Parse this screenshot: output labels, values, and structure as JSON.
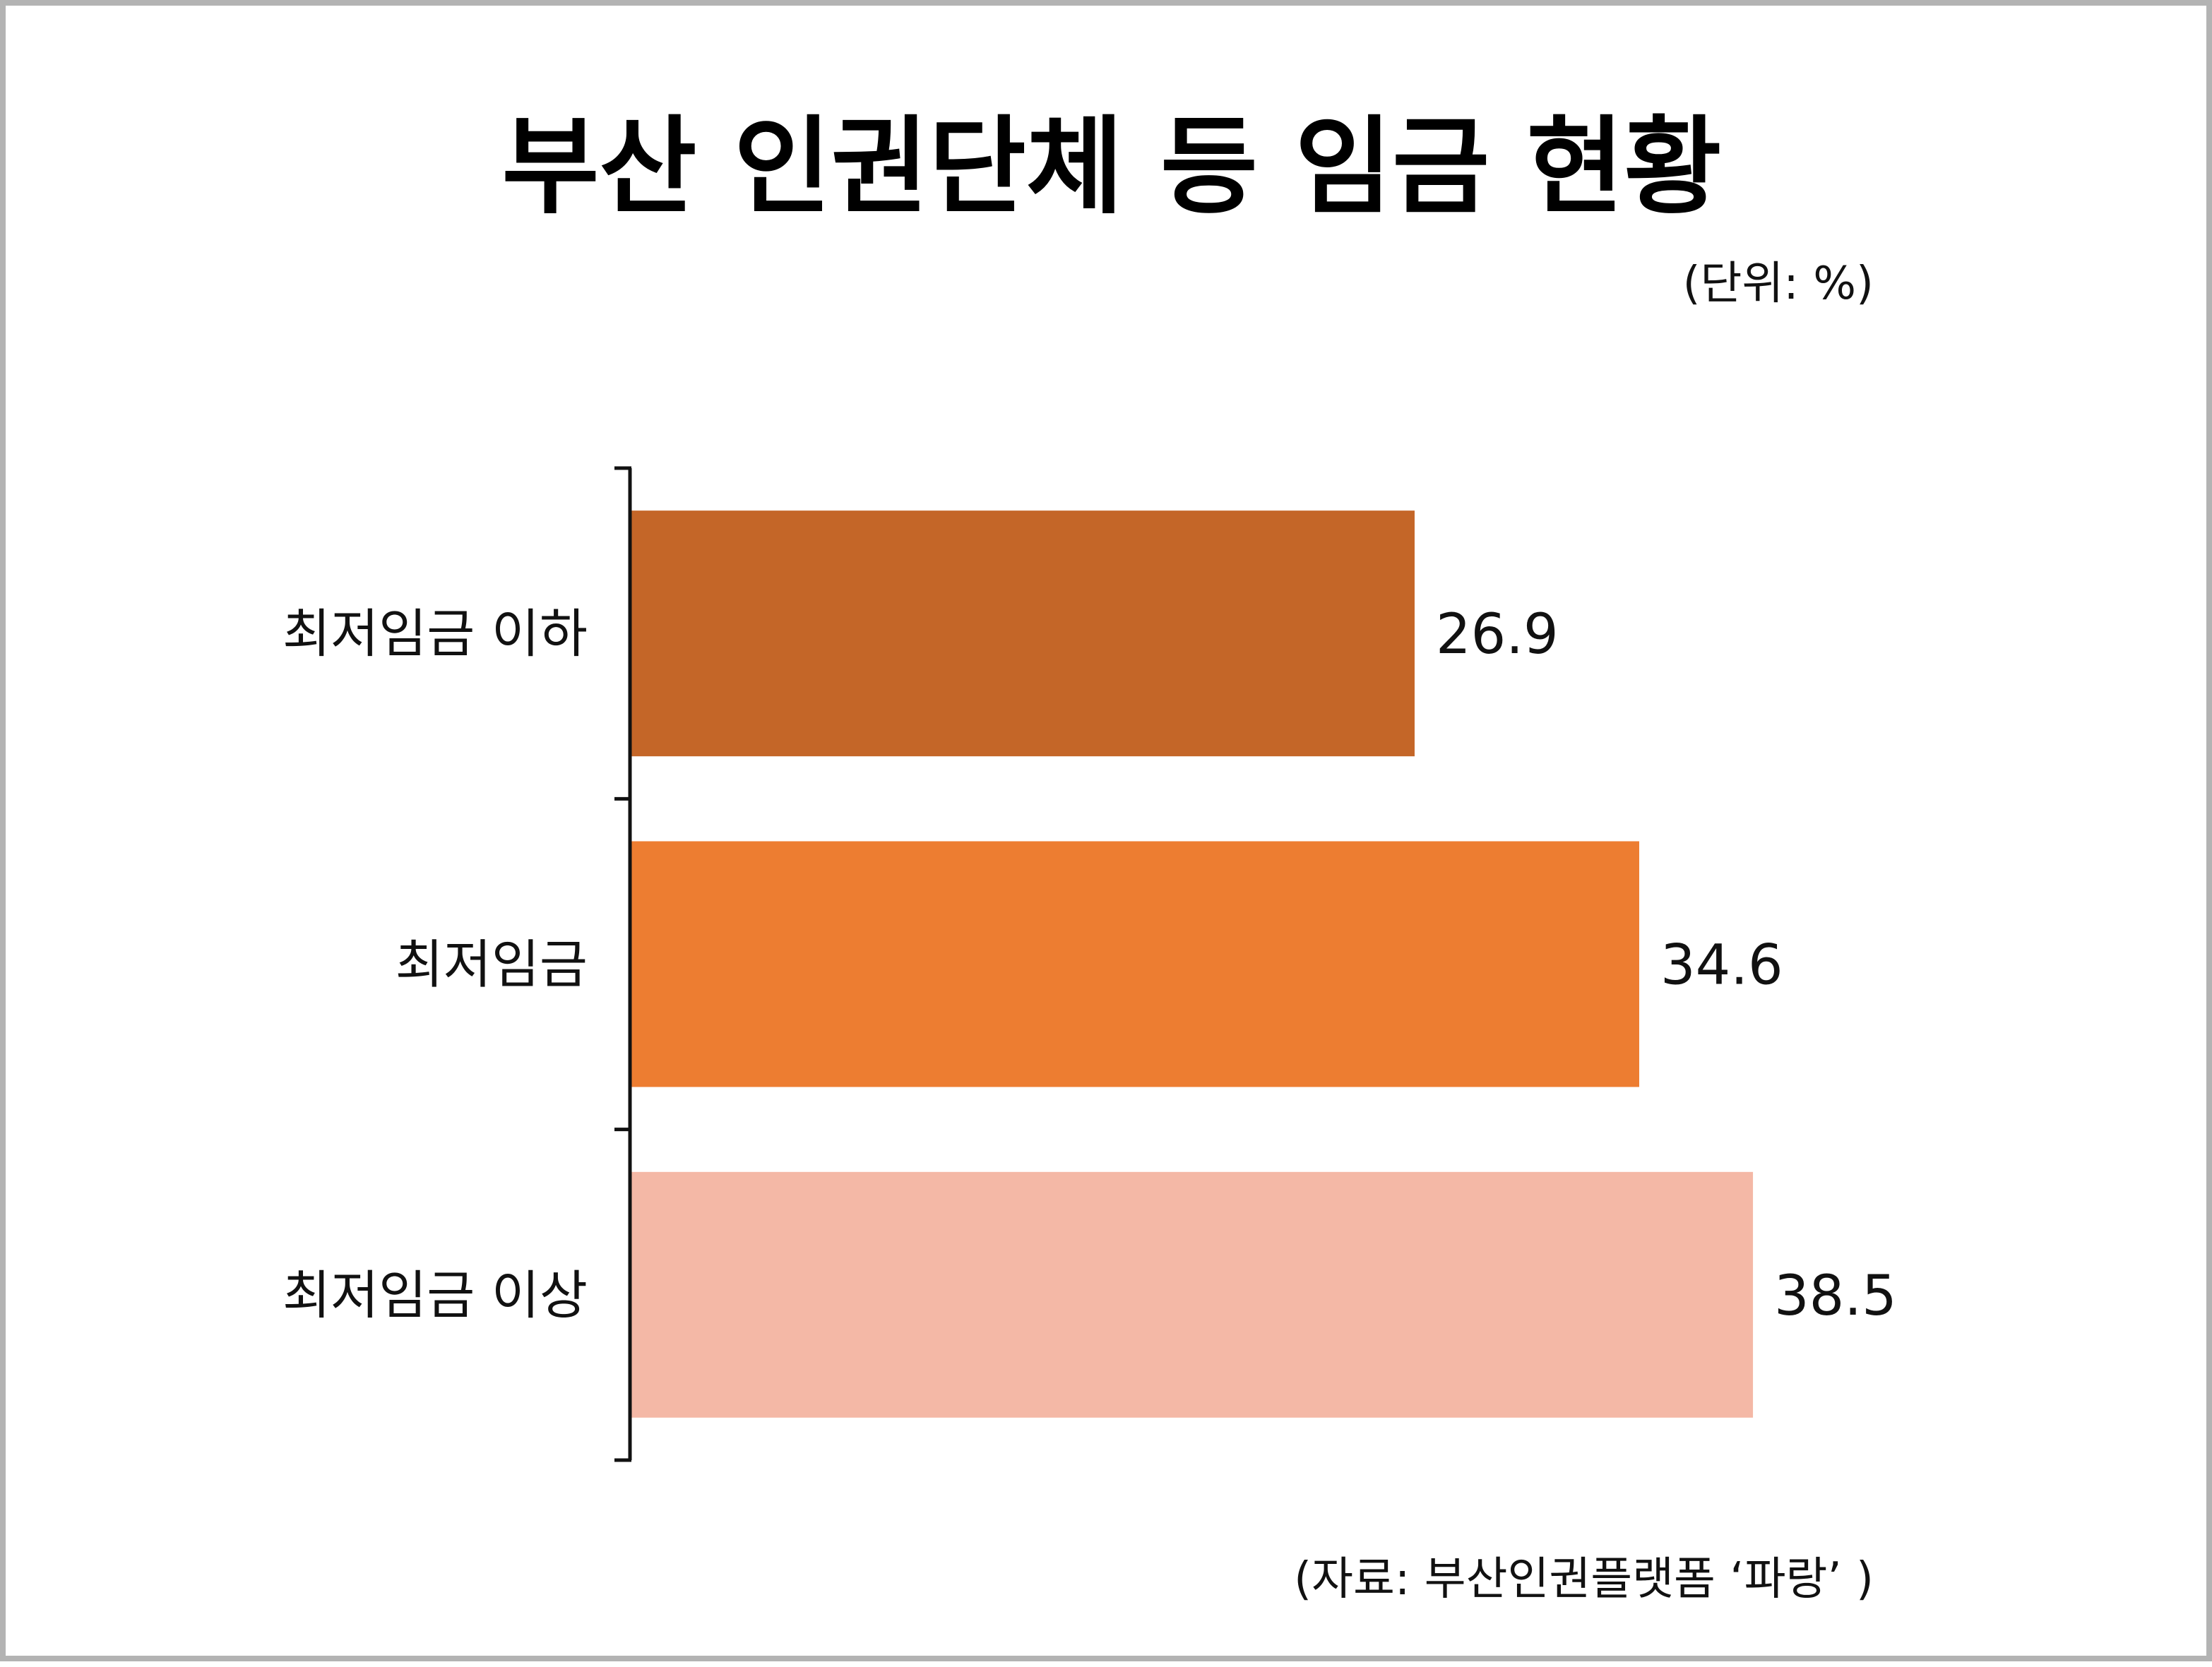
{
  "title": "부산 인권단체 등 임금 현황",
  "unit": "(단위: %)",
  "source": "(자료: 부산인권플랫폼 ‘파랑’ )",
  "chart_data": {
    "type": "bar",
    "orientation": "horizontal",
    "title": "부산 인권단체 등 임금 현황",
    "unit": "(단위: %)",
    "categories": [
      "최저임금 이하",
      "최저임금",
      "최저임금 이상"
    ],
    "values": [
      26.9,
      34.6,
      38.5
    ],
    "value_labels": [
      "26.9",
      "34.6",
      "38.5"
    ],
    "colors": [
      "#C46628",
      "#ED7D31",
      "#F4B8A6"
    ],
    "xlim": [
      0,
      40
    ],
    "grid": false,
    "legend": "none",
    "source": "(자료: 부산인권플랫폼 ‘파랑’ )"
  }
}
